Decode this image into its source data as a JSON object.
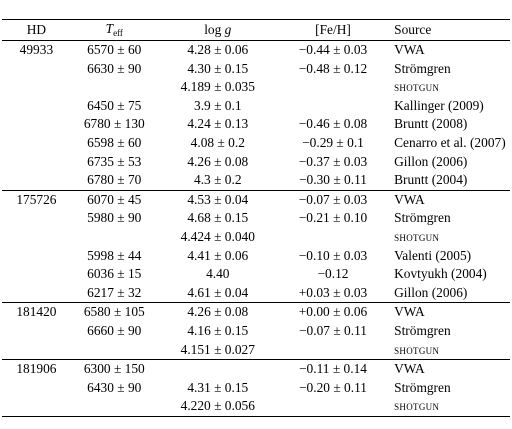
{
  "headers": {
    "hd": "HD",
    "teff_main": "T",
    "teff_sub": "eff",
    "logg_prefix": "log ",
    "logg_var": "g",
    "feh": "[Fe/H]",
    "source": "Source"
  },
  "rows": [
    {
      "hd": "49933",
      "teff": "6570 ± 60",
      "logg": "4.28  ±  0.06",
      "feh": "−0.44 ± 0.03",
      "source": "VWA"
    },
    {
      "hd": "",
      "teff": "6630 ± 90",
      "logg": "4.30  ±  0.15",
      "feh": "−0.48 ± 0.12",
      "source": "Strömgren"
    },
    {
      "hd": "",
      "teff": "",
      "logg": "4.189  ±  0.035",
      "feh": "",
      "source": "shotgun"
    },
    {
      "hd": "",
      "teff": "6450 ± 75",
      "logg": "3.9  ±  0.1",
      "feh": "",
      "source": "Kallinger (2009)"
    },
    {
      "hd": "",
      "teff": "6780 ± 130",
      "logg": "4.24  ±  0.13",
      "feh": "−0.46 ± 0.08",
      "source": "Bruntt (2008)"
    },
    {
      "hd": "",
      "teff": "6598 ± 60",
      "logg": "4.08  ±  0.2",
      "feh": "−0.29 ± 0.1",
      "source": "Cenarro et al. (2007)"
    },
    {
      "hd": "",
      "teff": "6735 ± 53",
      "logg": "4.26  ±  0.08",
      "feh": "−0.37 ± 0.03",
      "source": "Gillon (2006)"
    },
    {
      "hd": "",
      "teff": "6780 ± 70",
      "logg": "4.3  ±  0.2",
      "feh": "−0.30 ± 0.11",
      "source": "Bruntt (2004)"
    },
    {
      "hd": "175726",
      "teff": "6070 ± 45",
      "logg": "4.53  ±  0.04",
      "feh": "−0.07 ± 0.03",
      "source": "VWA"
    },
    {
      "hd": "",
      "teff": "5980 ± 90",
      "logg": "4.68  ±  0.15",
      "feh": "−0.21 ± 0.10",
      "source": "Strömgren"
    },
    {
      "hd": "",
      "teff": "",
      "logg": "4.424  ±  0.040",
      "feh": "",
      "source": "shotgun"
    },
    {
      "hd": "",
      "teff": "5998 ± 44",
      "logg": "4.41  ±  0.06",
      "feh": "−0.10 ± 0.03",
      "source": "Valenti (2005)"
    },
    {
      "hd": "",
      "teff": "6036 ± 15",
      "logg": "4.40",
      "feh": "−0.12",
      "source": "Kovtyukh (2004)"
    },
    {
      "hd": "",
      "teff": "6217 ± 32",
      "logg": "4.61  ±  0.04",
      "feh": "+0.03 ± 0.03",
      "source": "Gillon (2006)"
    },
    {
      "hd": "181420",
      "teff": "6580 ± 105",
      "logg": "4.26  ±  0.08",
      "feh": "+0.00 ± 0.06",
      "source": "VWA"
    },
    {
      "hd": "",
      "teff": "6660 ± 90",
      "logg": "4.16  ±  0.15",
      "feh": "−0.07 ± 0.11",
      "source": "Strömgren"
    },
    {
      "hd": "",
      "teff": "",
      "logg": "4.151  ±  0.027",
      "feh": "",
      "source": "shotgun"
    },
    {
      "hd": "181906",
      "teff": "6300 ± 150",
      "logg": "",
      "feh": "−0.11 ± 0.14",
      "source": "VWA"
    },
    {
      "hd": "",
      "teff": "6430 ± 90",
      "logg": "4.31  ±  0.15",
      "feh": "−0.20 ± 0.11",
      "source": "Strömgren"
    },
    {
      "hd": "",
      "teff": "",
      "logg": "4.220  ±  0.056",
      "feh": "",
      "source": "shotgun"
    }
  ]
}
